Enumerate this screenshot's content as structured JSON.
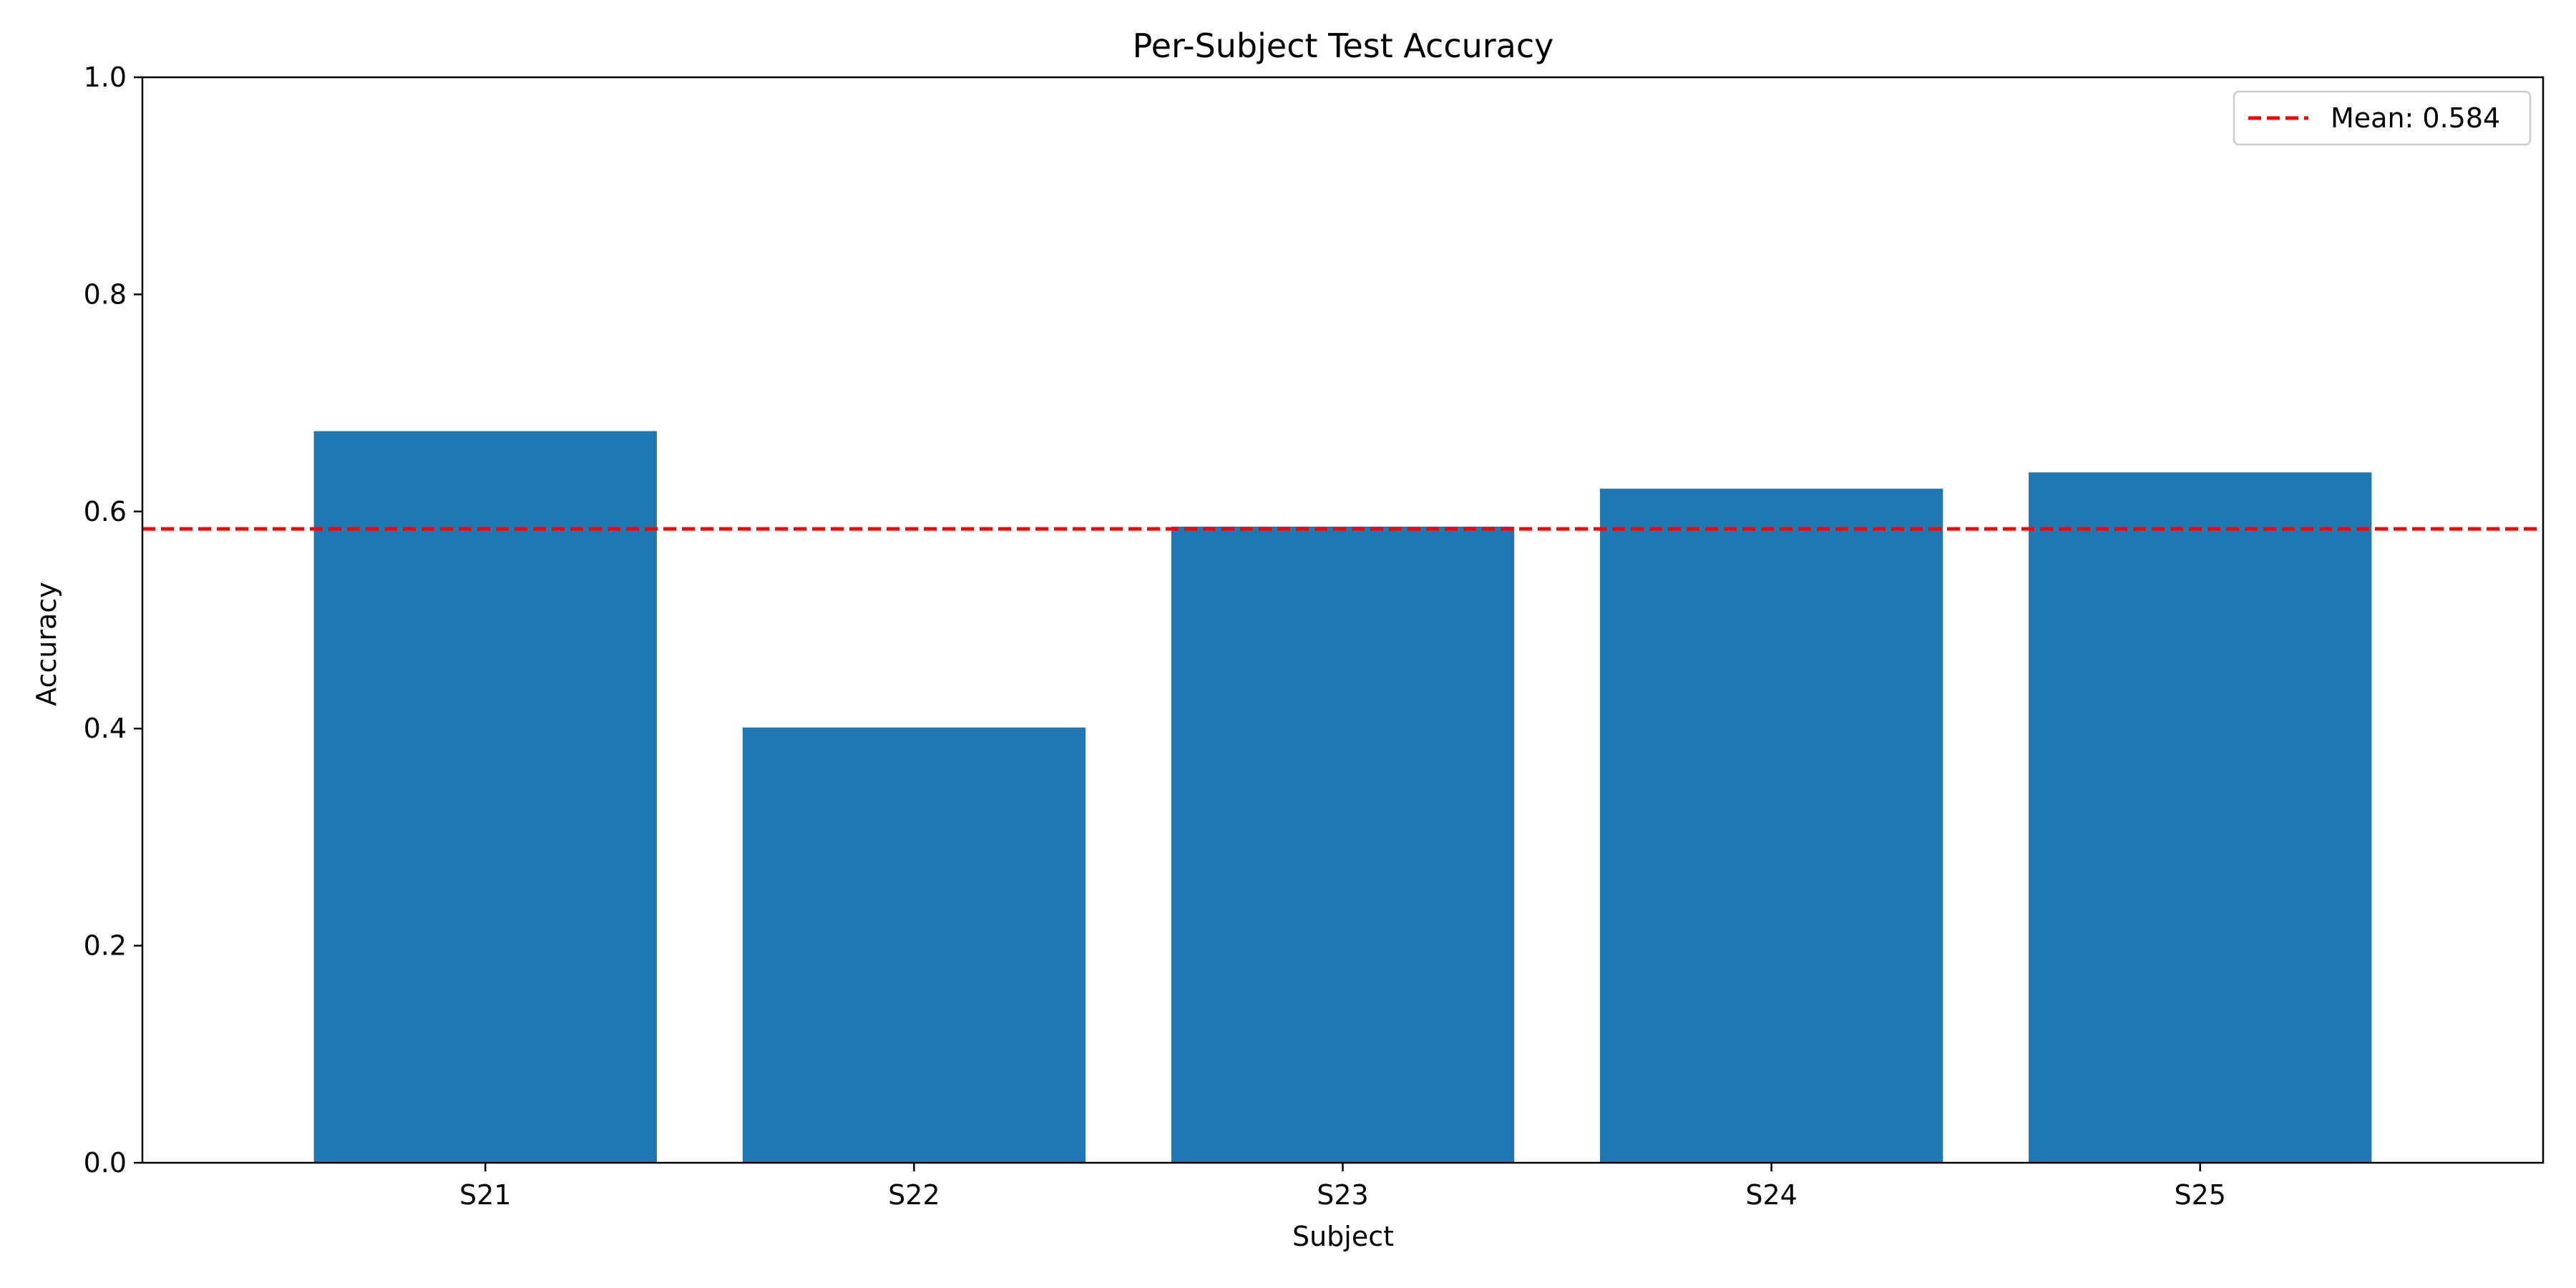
{
  "chart_data": {
    "type": "bar",
    "title": "Per-Subject Test Accuracy",
    "xlabel": "Subject",
    "ylabel": "Accuracy",
    "categories": [
      "S21",
      "S22",
      "S23",
      "S24",
      "S25"
    ],
    "values": [
      0.674,
      0.401,
      0.586,
      0.621,
      0.636
    ],
    "ylim": [
      0,
      1.0
    ],
    "yticks": [
      0.0,
      0.2,
      0.4,
      0.6,
      0.8,
      1.0
    ],
    "ytick_labels": [
      "0.0",
      "0.2",
      "0.4",
      "0.6",
      "0.8",
      "1.0"
    ],
    "bar_color": "#1f77b4",
    "grid": false,
    "reference_line": {
      "value": 0.584,
      "label": "Mean: 0.584",
      "color": "#ff0000",
      "style": "dashed"
    },
    "legend": {
      "position": "top-right",
      "entries": [
        "Mean: 0.584"
      ]
    }
  }
}
